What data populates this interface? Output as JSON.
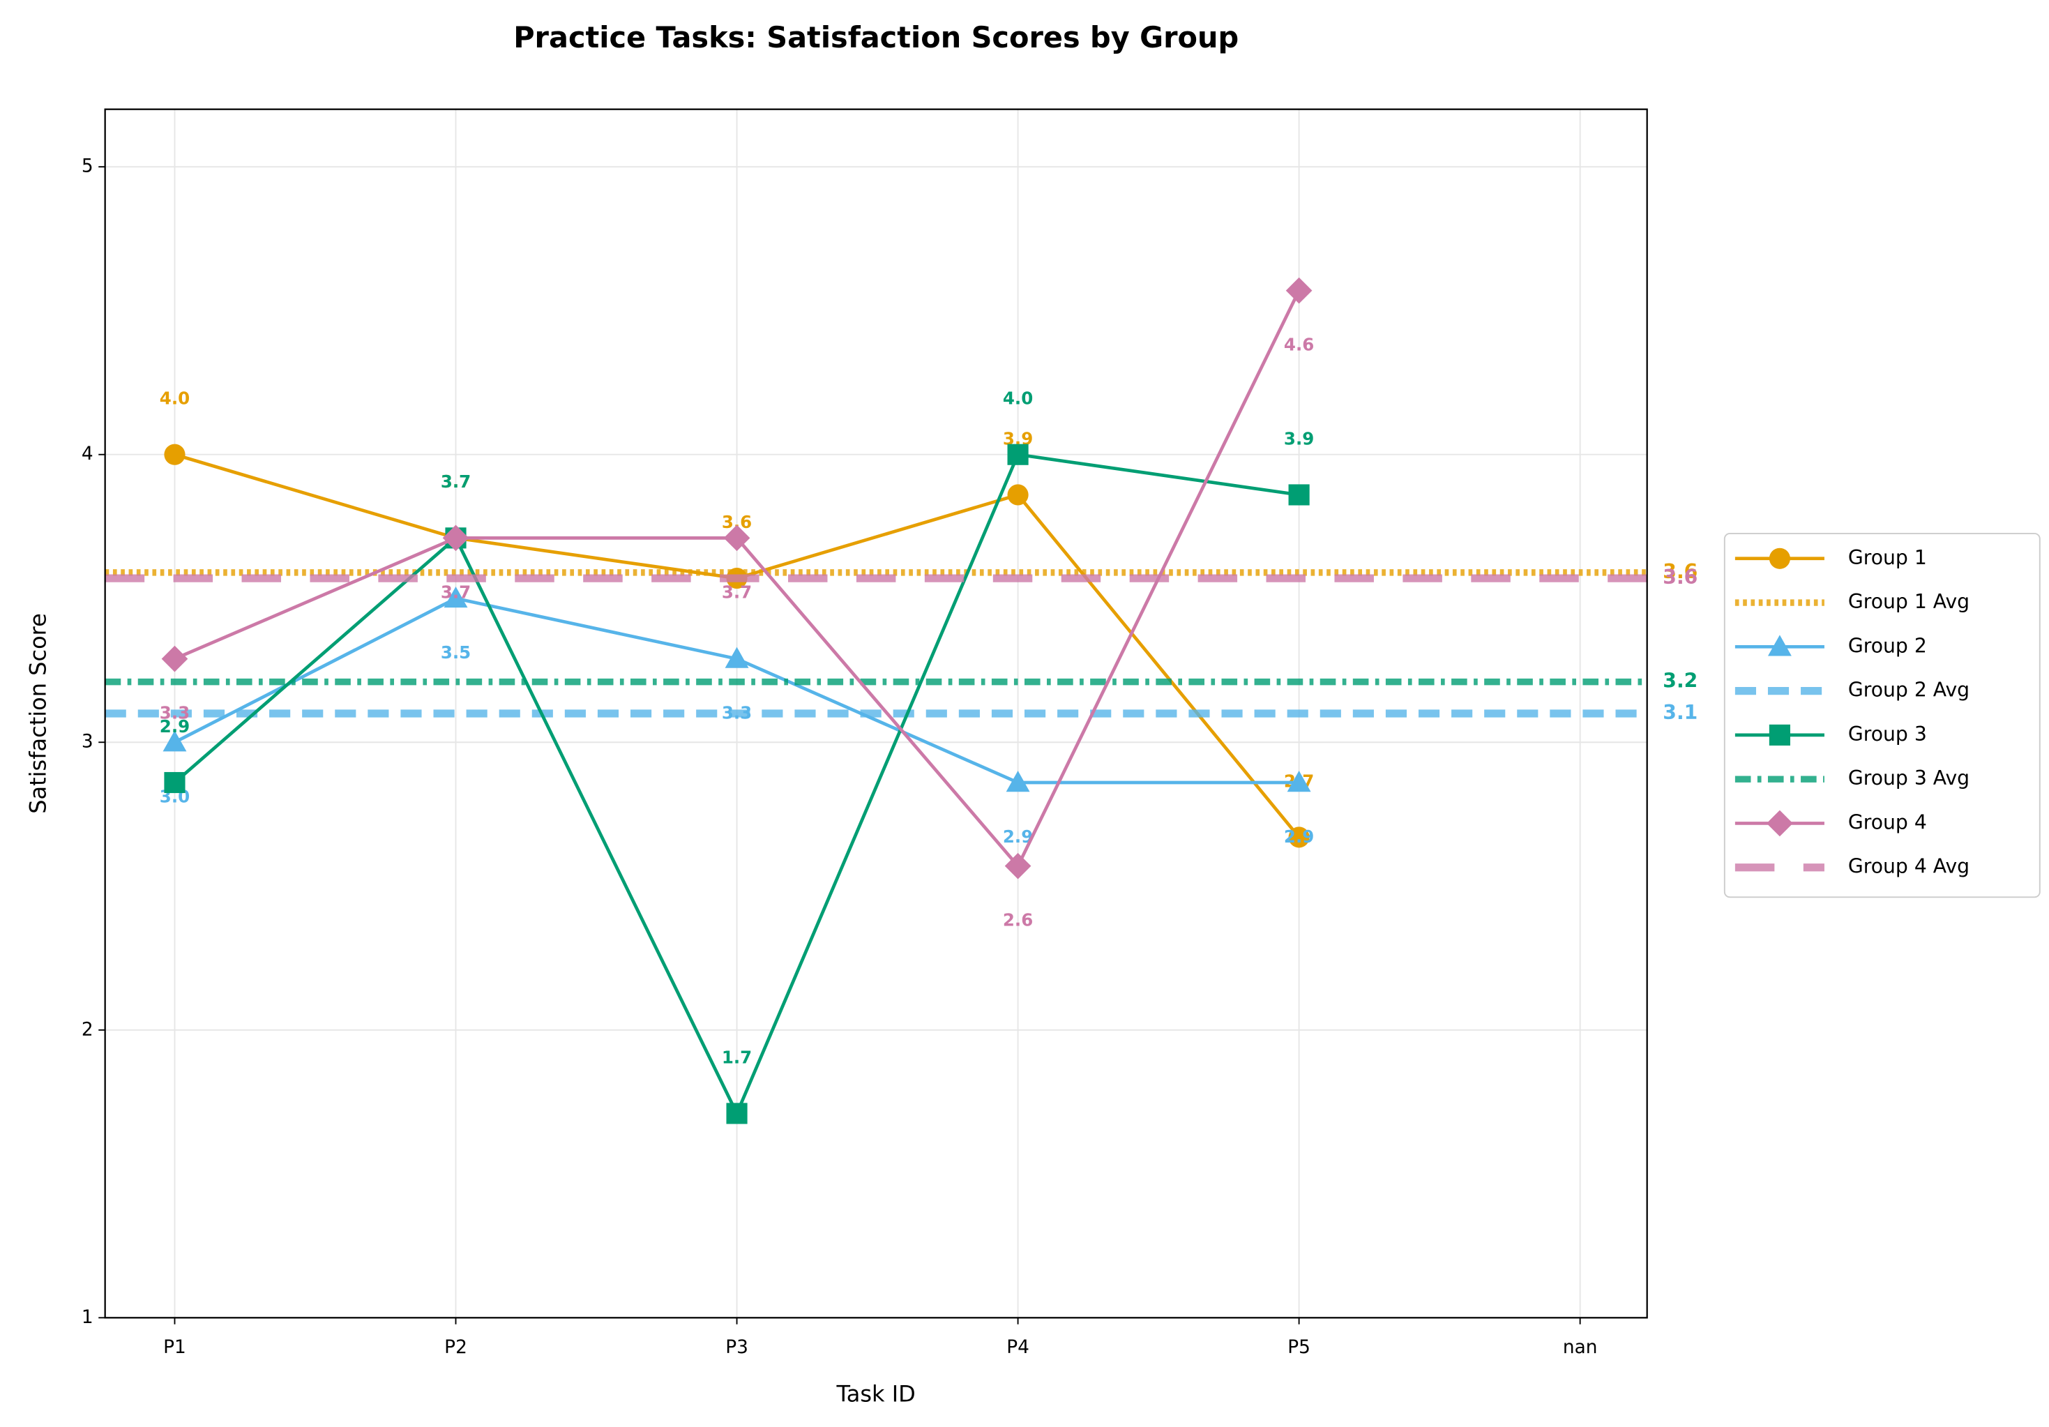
{
  "chart_data": {
    "type": "line",
    "title": "Practice Tasks: Satisfaction Scores by Group",
    "xlabel": "Task ID",
    "ylabel": "Satisfaction Score",
    "categories": [
      "P1",
      "P2",
      "P3",
      "P4",
      "P5",
      "nan"
    ],
    "ylim": [
      1,
      5.2
    ],
    "yticks": [
      1,
      2,
      3,
      4,
      5
    ],
    "grid": true,
    "legend": "right",
    "series": [
      {
        "name": "Group 1",
        "color": "#e69f00",
        "marker": "circle",
        "values": [
          4.0,
          3.71,
          3.57,
          3.86,
          2.67,
          null
        ],
        "value_labels": [
          "4.0",
          "3.7",
          "3.6",
          "3.9",
          "2.7",
          null
        ]
      },
      {
        "name": "Group 1 Avg",
        "color": "#e69f00",
        "linestyle": "dotted",
        "value": 3.59,
        "value_label": "3.6"
      },
      {
        "name": "Group 2",
        "color": "#56b4e9",
        "marker": "triangle",
        "values": [
          3.0,
          3.5,
          3.29,
          2.86,
          2.86,
          null
        ],
        "value_labels": [
          "3.0",
          "3.5",
          "3.3",
          "2.9",
          "2.9",
          null
        ]
      },
      {
        "name": "Group 2 Avg",
        "color": "#56b4e9",
        "linestyle": "dashed",
        "value": 3.1,
        "value_label": "3.1"
      },
      {
        "name": "Group 3",
        "color": "#009e73",
        "marker": "square",
        "values": [
          2.86,
          3.71,
          1.71,
          4.0,
          3.86,
          null
        ],
        "value_labels": [
          "2.9",
          "3.7",
          "1.7",
          "4.0",
          "3.9",
          null
        ]
      },
      {
        "name": "Group 3 Avg",
        "color": "#009e73",
        "linestyle": "dashdot",
        "value": 3.21,
        "value_label": "3.2"
      },
      {
        "name": "Group 4",
        "color": "#cc79a7",
        "marker": "diamond",
        "values": [
          3.29,
          3.71,
          3.71,
          2.57,
          4.57,
          null
        ],
        "value_labels": [
          "3.3",
          "3.7",
          "3.7",
          "2.6",
          "4.6",
          null
        ]
      },
      {
        "name": "Group 4 Avg",
        "color": "#cc79a7",
        "linestyle": "longdash",
        "value": 3.57,
        "value_label": "3.6"
      }
    ]
  }
}
